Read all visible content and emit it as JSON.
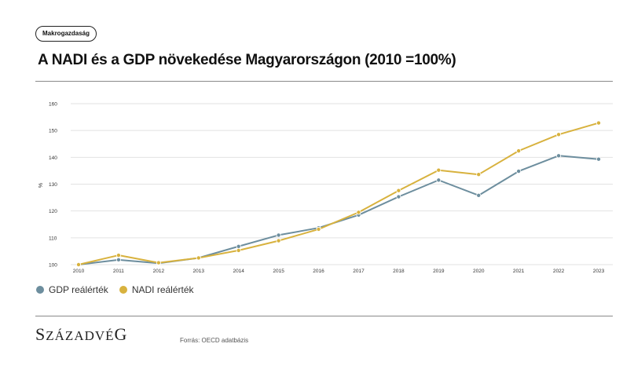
{
  "tag": {
    "label": "Makrogazdaság"
  },
  "title": "A NADI és a GDP növekedése Magyarországon (2010 =100%)",
  "logo": {
    "text": "SZÁZADVÉG"
  },
  "source": "Forrás: OECD adatbázis",
  "colors": {
    "gdp": "#6d8e9e",
    "nadi": "#d8b23e",
    "grid": "#e2e2e2",
    "rule": "#8a8a8a"
  },
  "chart_data": {
    "type": "line",
    "title": "A NADI és a GDP növekedése Magyarországon (2010 =100%)",
    "xlabel": "",
    "ylabel": "%",
    "x": [
      "2010",
      "2011",
      "2012",
      "2013",
      "2014",
      "2015",
      "2016",
      "2017",
      "2018",
      "2019",
      "2020",
      "2021",
      "2022",
      "2023"
    ],
    "ylim": [
      100,
      160
    ],
    "yticks": [
      100,
      110,
      120,
      130,
      140,
      150,
      160
    ],
    "grid": true,
    "legend": "bottom-left",
    "series": [
      {
        "name": "GDP reálérték",
        "color": "#6d8e9e",
        "values": [
          100,
          101.8,
          100.5,
          102.5,
          106.8,
          111.0,
          113.7,
          118.5,
          125.3,
          131.5,
          125.8,
          134.8,
          140.6,
          139.3
        ]
      },
      {
        "name": "NADI reálérték",
        "color": "#d8b23e",
        "values": [
          100,
          103.5,
          100.7,
          102.5,
          105.3,
          108.9,
          113.2,
          119.5,
          127.6,
          135.2,
          133.6,
          142.4,
          148.5,
          152.8
        ]
      }
    ]
  }
}
